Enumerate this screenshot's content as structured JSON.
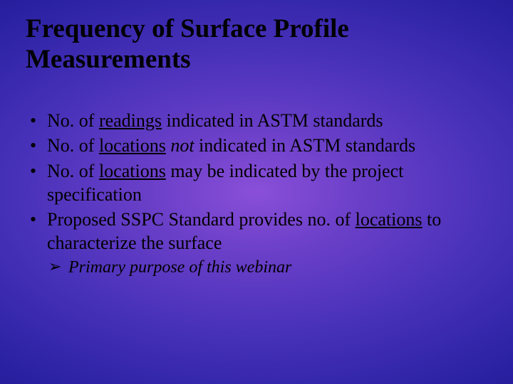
{
  "slide": {
    "background": {
      "type": "radial-gradient",
      "colors": [
        "#8a4fd8",
        "#6a3fc8",
        "#4530b8",
        "#2820a0",
        "#1a1080",
        "#0a0560",
        "#050340"
      ]
    },
    "title": {
      "line1": "Frequency of Surface Profile",
      "line2": "Measurements",
      "fontsize": 37,
      "weight": "bold",
      "color": "#000000"
    },
    "bullets": {
      "fontsize": 26,
      "color": "#000000",
      "items": [
        {
          "pre": "No. of ",
          "underlined": "readings",
          "post": " indicated in ASTM standards"
        },
        {
          "pre": "No. of ",
          "underlined": "locations",
          "italic": "not",
          "post2": " indicated in ASTM standards"
        },
        {
          "pre": "No. of ",
          "underlined": "locations",
          "post": " may be indicated by the project specification"
        },
        {
          "pre": "Proposed SSPC Standard provides no. of ",
          "underlined": "locations",
          "post": " to characterize the surface",
          "sub": [
            "Primary purpose of this webinar"
          ]
        }
      ]
    },
    "sub_fontsize": 24
  }
}
